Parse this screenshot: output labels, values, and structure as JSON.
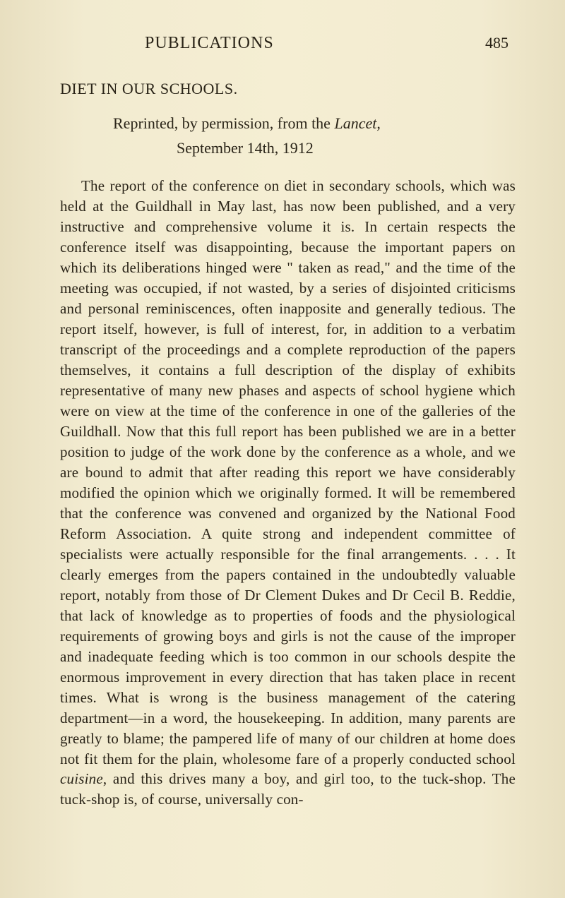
{
  "header": {
    "title": "PUBLICATIONS",
    "pageNumber": "485"
  },
  "section": {
    "title": "DIET IN OUR SCHOOLS.",
    "subtitle_pre": "Reprinted, by permission, from the ",
    "subtitle_italic": "Lancet,",
    "subtitle_line2": "September 14th, 1912"
  },
  "body": {
    "para1_part1": "The report of the conference on diet in secondary schools, which was held at the Guildhall in May last, has now been published, and a very instructive and comprehensive volume it is. In certain respects the conference itself was disappointing, because the important papers on which its deliberations hinged were \" taken as read,\" and the time of the meeting was occupied, if not wasted, by a series of disjointed criticisms and personal reminiscences, often inapposite and generally tedious. The report itself, however, is full of interest, for, in addition to a verbatim transcript of the proceedings and a complete reproduction of the papers themselves, it contains a full description of the display of exhibits representative of many new phases and aspects of school hygiene which were on view at the time of the conference in one of the galleries of the Guildhall. Now that this full report has been published we are in a better position to judge of the work done by the conference as a whole, and we are bound to admit that after reading this report we have considerably modified the opinion which we originally formed. It will be remembered that the conference was convened and organized by the National Food Reform Association. A quite strong and independent committee of specialists were actually responsible for the final arrangements. . . . It clearly emerges from the papers contained in the undoubtedly valuable report, notably from those of Dr Clement Dukes and Dr Cecil B. Reddie, that lack of knowledge as to properties of foods and the physiological requirements of growing boys and girls is not the cause of the improper and inadequate feeding which is too common in our schools despite the enormous improvement in every direction that has taken place in recent times. What is wrong is the business management of the catering department—in a word, the housekeeping. In addition, many parents are greatly to blame; the pampered life of many of our children at home does not fit them for the plain, wholesome fare of a properly conducted school ",
    "para1_italic": "cuisine",
    "para1_part2": ", and this drives many a boy, and girl too, to the tuck-shop. The tuck-shop is, of course, universally con-"
  },
  "colors": {
    "text": "#2a2418",
    "background": "#f2ebd0"
  },
  "typography": {
    "body_fontsize": 21,
    "header_fontsize": 24,
    "section_fontsize": 22
  }
}
